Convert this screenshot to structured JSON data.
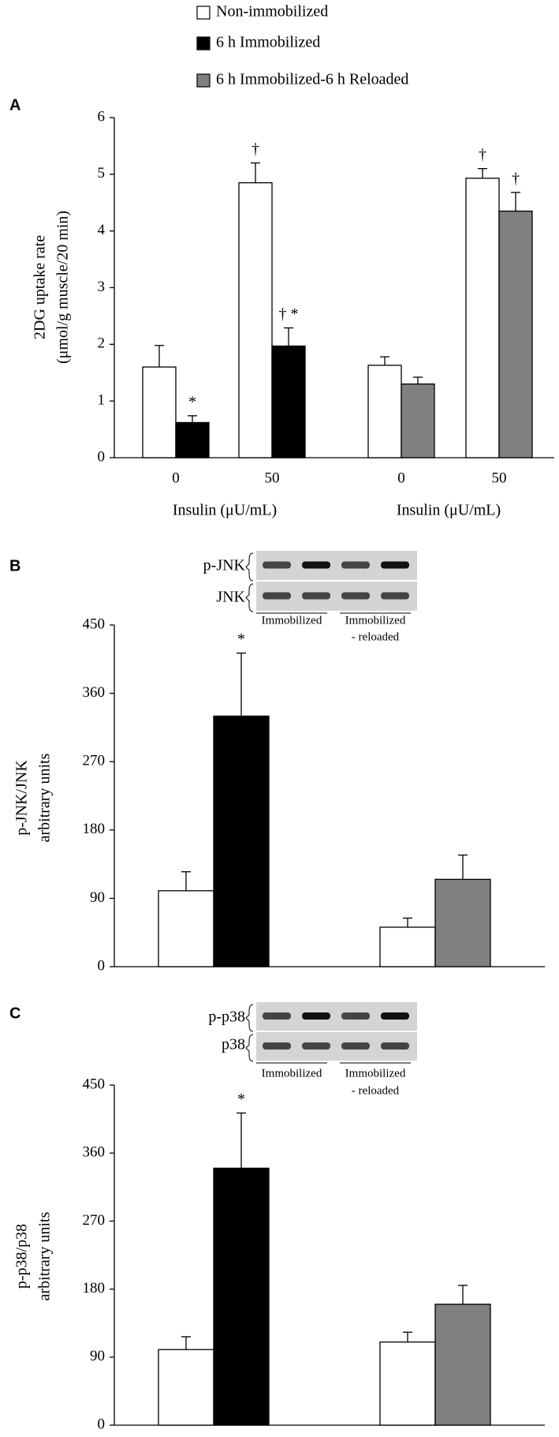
{
  "chart_data": [
    {
      "type": "bar",
      "panel": "A",
      "ylabel": [
        "2DG uptake rate",
        "(μmol/g muscle/20 min)"
      ],
      "categories": [
        "0",
        "50",
        "0",
        "50"
      ],
      "xlabels": [
        "Insulin (μU/mL)",
        "Insulin (μU/mL)"
      ],
      "ylim": [
        0,
        6
      ],
      "yticks": [
        0,
        1,
        2,
        3,
        4,
        5,
        6
      ],
      "series": [
        {
          "name": "Non-immobilized",
          "color": "#ffffff",
          "values": [
            1.6,
            4.85,
            1.63,
            4.93
          ],
          "errors": [
            0.38,
            0.35,
            0.15,
            0.17
          ],
          "markers": [
            null,
            "†",
            null,
            "†"
          ]
        },
        {
          "name": "6 h Immobilized",
          "color": "#000000",
          "values": [
            0.62,
            1.97,
            null,
            null
          ],
          "errors": [
            0.12,
            0.32,
            null,
            null
          ],
          "markers": [
            "*",
            "† *",
            null,
            null
          ]
        },
        {
          "name": "6 h Immobilized-6 h Reloaded",
          "color": "#808080",
          "values": [
            null,
            null,
            1.3,
            4.35
          ],
          "errors": [
            null,
            null,
            0.12,
            0.33
          ],
          "markers": [
            null,
            null,
            null,
            "†"
          ]
        }
      ]
    },
    {
      "type": "bar",
      "panel": "B",
      "ylabel": [
        "p-JNK/JNK",
        "arbitrary units"
      ],
      "blot_rows": [
        "p-JNK",
        "JNK"
      ],
      "blot_groups": [
        [
          "Immobilized"
        ],
        [
          "Immobilized",
          "- reloaded"
        ]
      ],
      "categories": [
        null,
        null
      ],
      "ylim": [
        0,
        450
      ],
      "yticks": [
        0,
        90,
        180,
        270,
        360,
        450
      ],
      "series": [
        {
          "color": "#ffffff",
          "values": [
            100,
            52
          ],
          "errors": [
            25,
            12
          ],
          "markers": [
            null,
            null
          ]
        },
        {
          "color": "#000000",
          "values": [
            330,
            null
          ],
          "errors": [
            83,
            null
          ],
          "markers": [
            "*",
            null
          ]
        },
        {
          "color": "#808080",
          "values": [
            null,
            115
          ],
          "errors": [
            null,
            32
          ],
          "markers": [
            null,
            null
          ]
        }
      ]
    },
    {
      "type": "bar",
      "panel": "C",
      "ylabel": [
        "p-p38/p38",
        "arbitrary units"
      ],
      "blot_rows": [
        "p-p38",
        "p38"
      ],
      "blot_groups": [
        [
          "Immobilized"
        ],
        [
          "Immobilized",
          "- reloaded"
        ]
      ],
      "categories": [
        null,
        null
      ],
      "ylim": [
        0,
        450
      ],
      "yticks": [
        0,
        90,
        180,
        270,
        360,
        450
      ],
      "series": [
        {
          "color": "#ffffff",
          "values": [
            100,
            110
          ],
          "errors": [
            17,
            13
          ],
          "markers": [
            null,
            null
          ]
        },
        {
          "color": "#000000",
          "values": [
            340,
            null
          ],
          "errors": [
            73,
            null
          ],
          "markers": [
            "*",
            null
          ]
        },
        {
          "color": "#808080",
          "values": [
            null,
            160
          ],
          "errors": [
            null,
            25
          ],
          "markers": [
            null,
            null
          ]
        }
      ]
    }
  ]
}
